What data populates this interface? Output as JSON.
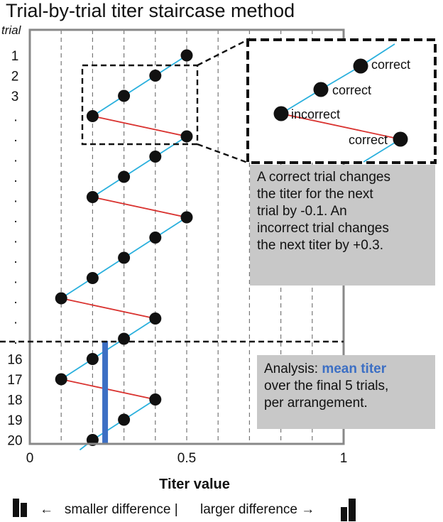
{
  "title": "Trial-by-trial titer staircase method",
  "trial_header": "trial",
  "trial_labels": [
    "1",
    "2",
    "3",
    ".",
    ".",
    ".",
    ".",
    ".",
    ".",
    ".",
    ".",
    ".",
    ".",
    ".",
    ".",
    "16",
    "17",
    "18",
    "19",
    "20"
  ],
  "x_axis": {
    "title": "Titer value",
    "ticks": [
      0,
      0.5,
      1
    ],
    "tick_labels": [
      "0",
      "0.5",
      "1"
    ],
    "range": [
      0,
      1
    ],
    "gridlines": [
      0.1,
      0.2,
      0.3,
      0.4,
      0.5,
      0.6,
      0.7,
      0.8,
      0.9
    ]
  },
  "trials": [
    {
      "trial": 1,
      "titer": 0.5
    },
    {
      "trial": 2,
      "titer": 0.4
    },
    {
      "trial": 3,
      "titer": 0.3
    },
    {
      "trial": 4,
      "titer": 0.2
    },
    {
      "trial": 5,
      "titer": 0.5
    },
    {
      "trial": 6,
      "titer": 0.4
    },
    {
      "trial": 7,
      "titer": 0.3
    },
    {
      "trial": 8,
      "titer": 0.2
    },
    {
      "trial": 9,
      "titer": 0.5
    },
    {
      "trial": 10,
      "titer": 0.4
    },
    {
      "trial": 11,
      "titer": 0.3
    },
    {
      "trial": 12,
      "titer": 0.2
    },
    {
      "trial": 13,
      "titer": 0.1
    },
    {
      "trial": 14,
      "titer": 0.4
    },
    {
      "trial": 15,
      "titer": 0.3
    },
    {
      "trial": 16,
      "titer": 0.2
    },
    {
      "trial": 17,
      "titer": 0.1
    },
    {
      "trial": 18,
      "titer": 0.4
    },
    {
      "trial": 19,
      "titer": 0.3
    },
    {
      "trial": 20,
      "titer": 0.2
    }
  ],
  "mean_titer": 0.24,
  "inset_labels": {
    "first": "correct",
    "second": "correct",
    "third": "incorrect",
    "fourth": "correct"
  },
  "note_rule": {
    "lines": [
      "A correct trial changes",
      "the titer for the next",
      "trial by -0.1. An",
      "incorrect trial changes",
      "the next titer by +0.3."
    ]
  },
  "note_analysis": {
    "prefix": "Analysis: ",
    "highlight": "mean titer",
    "lines": [
      "over the final 5 trials,",
      "per arrangement."
    ]
  },
  "legend": {
    "left": "smaller difference  |",
    "right": "larger difference",
    "left_arrow": "←",
    "right_arrow": "→"
  },
  "colors": {
    "correct_line": "#2ab0dd",
    "incorrect_line": "#d9322f",
    "mean_bar": "#3c6fc4",
    "note_bg": "#c8c8c8",
    "frame": "#888888"
  }
}
